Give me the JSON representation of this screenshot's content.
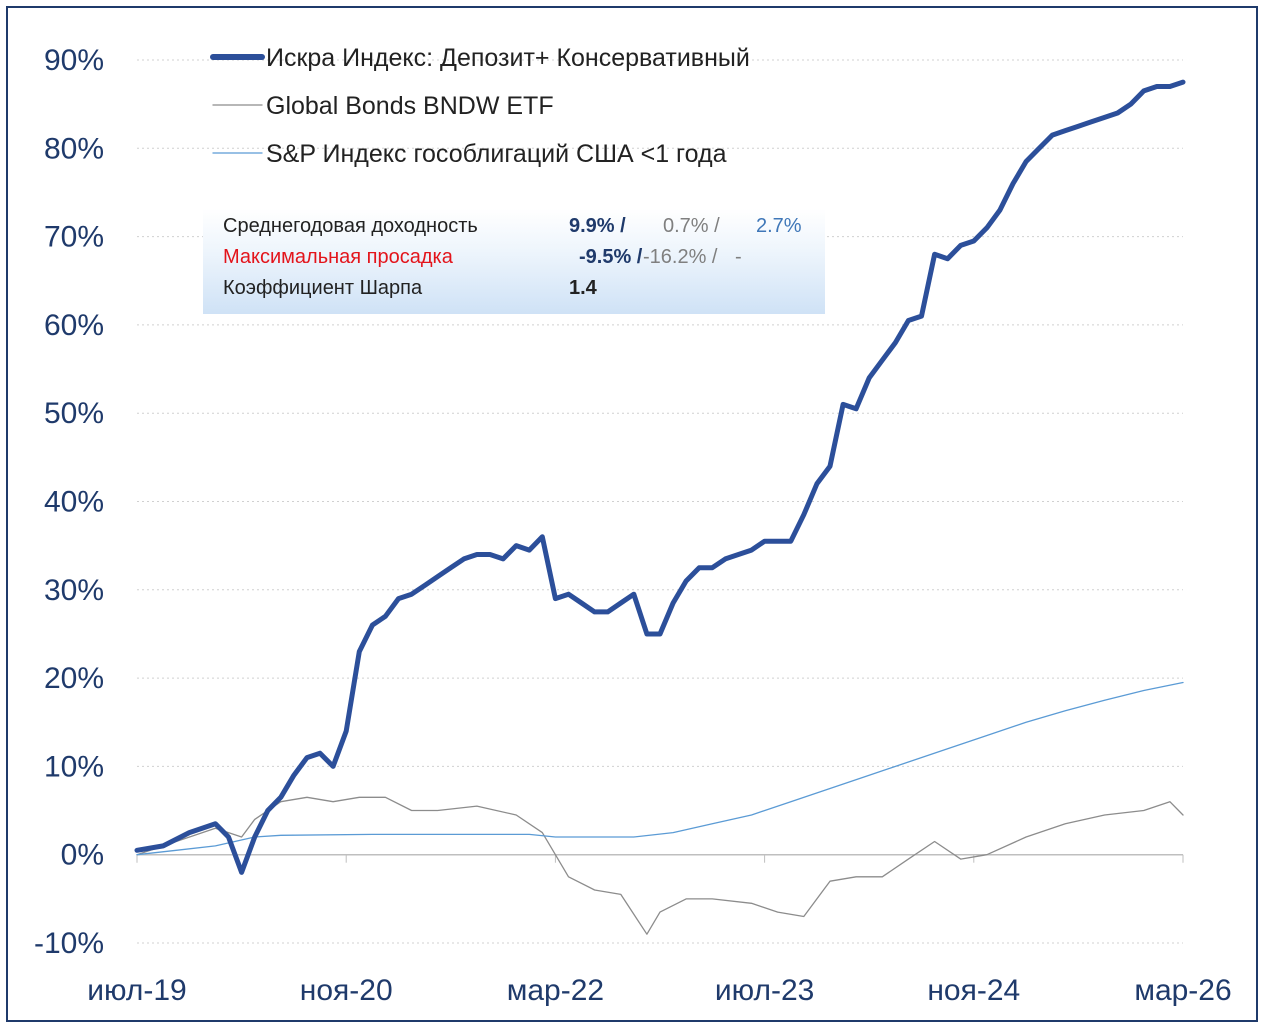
{
  "chart_data": {
    "type": "line",
    "y_unit": "%",
    "ylim": [
      -10,
      90
    ],
    "y_ticks": [
      "90%",
      "80%",
      "70%",
      "60%",
      "50%",
      "40%",
      "30%",
      "20%",
      "10%",
      "0%",
      "-10%"
    ],
    "x_ticks": [
      "июл-19",
      "ноя-20",
      "мар-22",
      "июл-23",
      "ноя-24",
      "мар-26"
    ],
    "grid": "horizontal dotted",
    "legend_position": "top-left",
    "series": [
      {
        "name": "Искра Индекс: Депозит+ Консервативный",
        "color": "#2c4f9a",
        "style": "thick",
        "points": [
          [
            "2019-07",
            0.5
          ],
          [
            "2019-09",
            1.0
          ],
          [
            "2019-11",
            2.5
          ],
          [
            "2020-01",
            3.5
          ],
          [
            "2020-02",
            2.0
          ],
          [
            "2020-03",
            -2.0
          ],
          [
            "2020-04",
            2.0
          ],
          [
            "2020-05",
            5.0
          ],
          [
            "2020-06",
            6.5
          ],
          [
            "2020-07",
            9.0
          ],
          [
            "2020-08",
            11.0
          ],
          [
            "2020-09",
            11.5
          ],
          [
            "2020-10",
            10.0
          ],
          [
            "2020-11",
            14.0
          ],
          [
            "2020-12",
            23.0
          ],
          [
            "2021-01",
            26.0
          ],
          [
            "2021-02",
            27.0
          ],
          [
            "2021-03",
            29.0
          ],
          [
            "2021-04",
            29.5
          ],
          [
            "2021-05",
            30.5
          ],
          [
            "2021-06",
            31.5
          ],
          [
            "2021-07",
            32.5
          ],
          [
            "2021-08",
            33.5
          ],
          [
            "2021-09",
            34.0
          ],
          [
            "2021-10",
            34.0
          ],
          [
            "2021-11",
            33.5
          ],
          [
            "2021-12",
            35.0
          ],
          [
            "2022-01",
            34.5
          ],
          [
            "2022-02",
            36.0
          ],
          [
            "2022-03",
            29.0
          ],
          [
            "2022-04",
            29.5
          ],
          [
            "2022-05",
            28.5
          ],
          [
            "2022-06",
            27.5
          ],
          [
            "2022-07",
            27.5
          ],
          [
            "2022-08",
            28.5
          ],
          [
            "2022-09",
            29.5
          ],
          [
            "2022-10",
            25.0
          ],
          [
            "2022-11",
            25.0
          ],
          [
            "2022-12",
            28.5
          ],
          [
            "2023-01",
            31.0
          ],
          [
            "2023-02",
            32.5
          ],
          [
            "2023-03",
            32.5
          ],
          [
            "2023-04",
            33.5
          ],
          [
            "2023-05",
            34.0
          ],
          [
            "2023-06",
            34.5
          ],
          [
            "2023-07",
            35.5
          ],
          [
            "2023-08",
            35.5
          ],
          [
            "2023-09",
            35.5
          ],
          [
            "2023-10",
            38.5
          ],
          [
            "2023-11",
            42.0
          ],
          [
            "2023-12",
            44.0
          ],
          [
            "2024-01",
            51.0
          ],
          [
            "2024-02",
            50.5
          ],
          [
            "2024-03",
            54.0
          ],
          [
            "2024-04",
            56.0
          ],
          [
            "2024-05",
            58.0
          ],
          [
            "2024-06",
            60.5
          ],
          [
            "2024-07",
            61.0
          ],
          [
            "2024-08",
            68.0
          ],
          [
            "2024-09",
            67.5
          ],
          [
            "2024-10",
            69.0
          ],
          [
            "2024-11",
            69.5
          ],
          [
            "2024-12",
            71.0
          ],
          [
            "2025-01",
            73.0
          ],
          [
            "2025-02",
            76.0
          ],
          [
            "2025-03",
            78.5
          ],
          [
            "2025-04",
            80.0
          ],
          [
            "2025-05",
            81.5
          ],
          [
            "2025-06",
            82.0
          ],
          [
            "2025-07",
            82.5
          ],
          [
            "2025-08",
            83.0
          ],
          [
            "2025-09",
            83.5
          ],
          [
            "2025-10",
            84.0
          ],
          [
            "2025-11",
            85.0
          ],
          [
            "2025-12",
            86.5
          ],
          [
            "2026-01",
            87.0
          ],
          [
            "2026-02",
            87.0
          ],
          [
            "2026-03",
            87.5
          ]
        ]
      },
      {
        "name": "Global Bonds BNDW ETF",
        "color": "#8c8c8c",
        "style": "thin",
        "points": [
          [
            "2019-07",
            0.0
          ],
          [
            "2019-10",
            1.5
          ],
          [
            "2020-01",
            3.0
          ],
          [
            "2020-03",
            2.0
          ],
          [
            "2020-04",
            4.0
          ],
          [
            "2020-06",
            6.0
          ],
          [
            "2020-08",
            6.5
          ],
          [
            "2020-10",
            6.0
          ],
          [
            "2020-12",
            6.5
          ],
          [
            "2021-02",
            6.5
          ],
          [
            "2021-04",
            5.0
          ],
          [
            "2021-06",
            5.0
          ],
          [
            "2021-09",
            5.5
          ],
          [
            "2021-12",
            4.5
          ],
          [
            "2022-02",
            2.5
          ],
          [
            "2022-04",
            -2.5
          ],
          [
            "2022-06",
            -4.0
          ],
          [
            "2022-08",
            -4.5
          ],
          [
            "2022-10",
            -9.0
          ],
          [
            "2022-11",
            -6.5
          ],
          [
            "2023-01",
            -5.0
          ],
          [
            "2023-03",
            -5.0
          ],
          [
            "2023-06",
            -5.5
          ],
          [
            "2023-08",
            -6.5
          ],
          [
            "2023-10",
            -7.0
          ],
          [
            "2023-12",
            -3.0
          ],
          [
            "2024-02",
            -2.5
          ],
          [
            "2024-04",
            -2.5
          ],
          [
            "2024-06",
            -0.5
          ],
          [
            "2024-08",
            1.5
          ],
          [
            "2024-10",
            -0.5
          ],
          [
            "2024-12",
            0.0
          ],
          [
            "2025-03",
            2.0
          ],
          [
            "2025-06",
            3.5
          ],
          [
            "2025-09",
            4.5
          ],
          [
            "2025-12",
            5.0
          ],
          [
            "2026-02",
            6.0
          ],
          [
            "2026-03",
            4.5
          ]
        ]
      },
      {
        "name": "S&P Индекс гособлигаций США <1 года",
        "color": "#5b9bd5",
        "style": "thin",
        "points": [
          [
            "2019-07",
            0.0
          ],
          [
            "2019-10",
            0.5
          ],
          [
            "2020-01",
            1.0
          ],
          [
            "2020-04",
            2.0
          ],
          [
            "2020-06",
            2.2
          ],
          [
            "2021-01",
            2.3
          ],
          [
            "2021-06",
            2.3
          ],
          [
            "2022-01",
            2.3
          ],
          [
            "2022-03",
            2.0
          ],
          [
            "2022-06",
            2.0
          ],
          [
            "2022-09",
            2.0
          ],
          [
            "2022-12",
            2.5
          ],
          [
            "2023-03",
            3.5
          ],
          [
            "2023-06",
            4.5
          ],
          [
            "2023-09",
            6.0
          ],
          [
            "2023-12",
            7.5
          ],
          [
            "2024-03",
            9.0
          ],
          [
            "2024-06",
            10.5
          ],
          [
            "2024-09",
            12.0
          ],
          [
            "2024-12",
            13.5
          ],
          [
            "2025-03",
            15.0
          ],
          [
            "2025-06",
            16.3
          ],
          [
            "2025-09",
            17.5
          ],
          [
            "2025-12",
            18.6
          ],
          [
            "2026-03",
            19.5
          ]
        ]
      }
    ]
  },
  "stats": {
    "rows": [
      {
        "label": "Среднегодовая доходность",
        "v1": "9.9% /",
        "v2": "0.7% /",
        "v3": "2.7%"
      },
      {
        "label": "Максимальная просадка",
        "v1": "-9.5% /",
        "v2": "-16.2% /",
        "v3": "-"
      },
      {
        "label": "Коэффициент Шарпа",
        "v1": "1.4"
      }
    ]
  }
}
